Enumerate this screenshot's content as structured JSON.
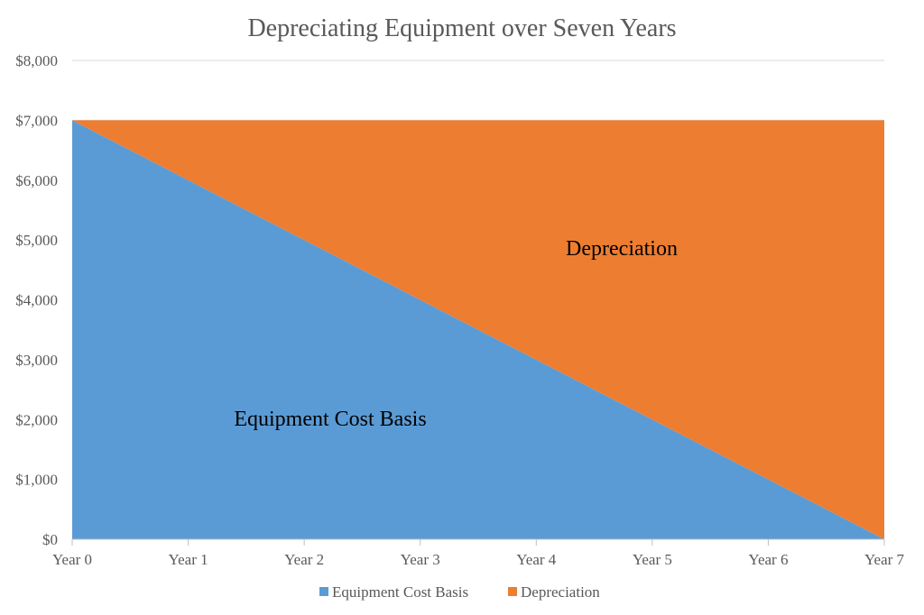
{
  "chart_data": {
    "type": "area",
    "title": "Depreciating Equipment over Seven Years",
    "xlabel": "",
    "ylabel": "",
    "categories": [
      "Year 0",
      "Year 1",
      "Year 2",
      "Year 3",
      "Year 4",
      "Year 5",
      "Year 6",
      "Year 7"
    ],
    "stacked": true,
    "series": [
      {
        "name": "Equipment Cost Basis",
        "color": "#5B9BD5",
        "values": [
          7000,
          6000,
          5000,
          4000,
          3000,
          2000,
          1000,
          0
        ]
      },
      {
        "name": "Depreciation",
        "color": "#ED7D31",
        "values": [
          0,
          1000,
          2000,
          3000,
          4000,
          5000,
          6000,
          7000
        ]
      }
    ],
    "y_ticks": [
      "$0",
      "$1,000",
      "$2,000",
      "$3,000",
      "$4,000",
      "$5,000",
      "$6,000",
      "$7,000",
      "$8,000"
    ],
    "ylim": [
      0,
      8000
    ],
    "grid": true,
    "legend_position": "bottom",
    "annotations": [
      "Equipment Cost Basis",
      "Depreciation"
    ]
  }
}
